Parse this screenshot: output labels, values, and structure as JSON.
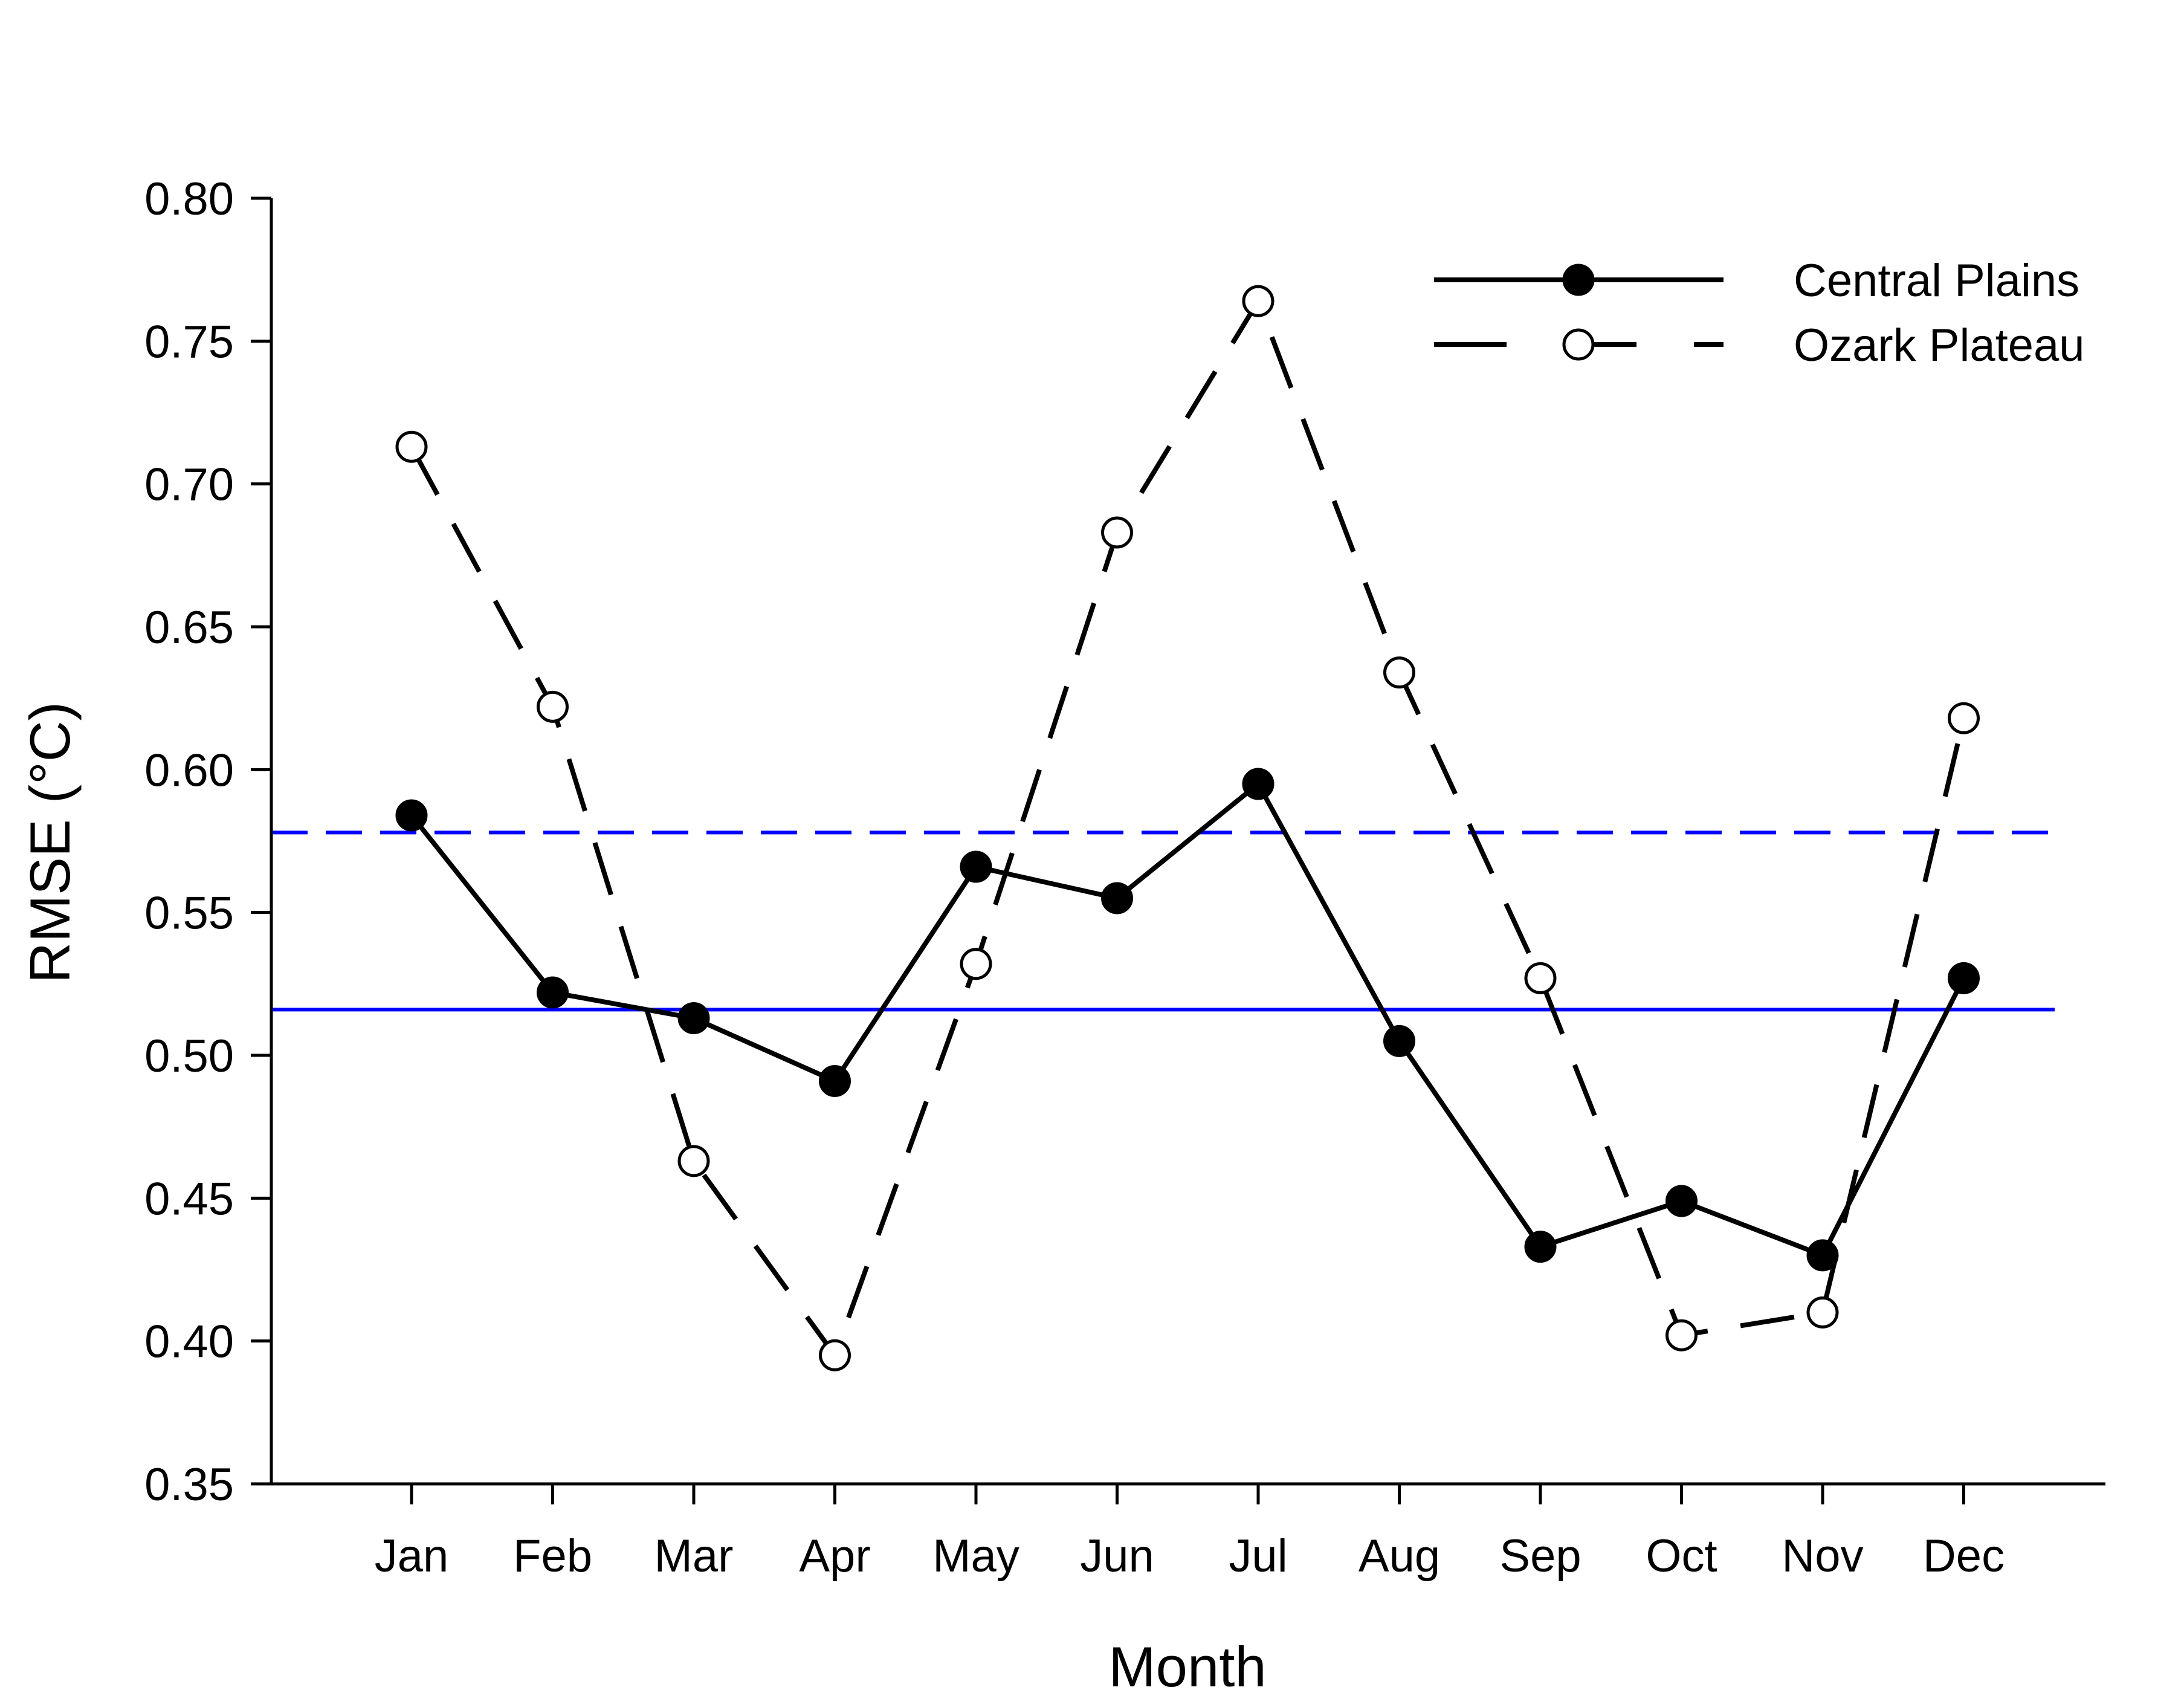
{
  "chart_data": {
    "type": "line",
    "title": "",
    "xlabel": "Month",
    "ylabel": "RMSE (°C)",
    "categories": [
      "Jan",
      "Feb",
      "Mar",
      "Apr",
      "May",
      "Jun",
      "Jul",
      "Aug",
      "Sep",
      "Oct",
      "Nov",
      "Dec"
    ],
    "ylim": [
      0.35,
      0.8
    ],
    "yticks": [
      "0.35",
      "0.40",
      "0.45",
      "0.50",
      "0.55",
      "0.60",
      "0.65",
      "0.70",
      "0.75",
      "0.80"
    ],
    "grid": false,
    "legend_position": "top-right",
    "series": [
      {
        "name": "Central Plains",
        "style": "solid",
        "marker": "filled-circle",
        "color": "#000000",
        "values": [
          0.584,
          0.522,
          0.513,
          0.491,
          0.566,
          0.555,
          0.595,
          0.505,
          0.433,
          0.449,
          0.43,
          0.527
        ]
      },
      {
        "name": "Ozark Plateau",
        "style": "dashed",
        "marker": "open-circle",
        "color": "#000000",
        "values": [
          0.713,
          0.622,
          0.463,
          0.395,
          0.532,
          0.683,
          0.764,
          0.634,
          0.527,
          0.402,
          0.41,
          0.618
        ]
      }
    ],
    "reference_lines": [
      {
        "value": 0.578,
        "style": "dashed",
        "color": "#0000ff"
      },
      {
        "value": 0.516,
        "style": "solid",
        "color": "#0000ff"
      }
    ]
  }
}
